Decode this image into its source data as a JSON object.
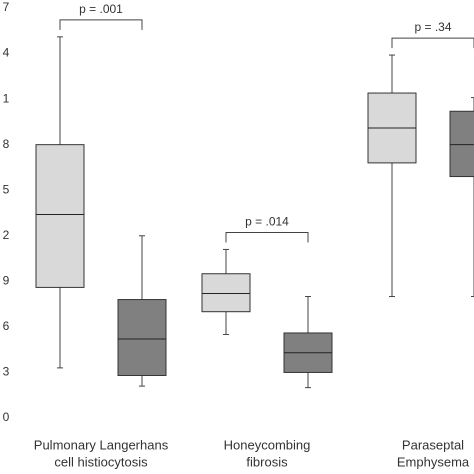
{
  "chart_data": {
    "type": "box",
    "categories": [
      [
        "Pulmonary Langerhans",
        "cell histiocytosis"
      ],
      [
        "Honeycombing",
        "fibrosis"
      ],
      [
        "Paraseptal",
        "Emphysema"
      ]
    ],
    "series": [
      {
        "color": "#d9d9d9",
        "boxes": [
          {
            "min": 3.3,
            "q1": 8.6,
            "median": 13.4,
            "q3": 18.0,
            "max": 25.1
          },
          {
            "min": 5.5,
            "q1": 7.0,
            "median": 8.2,
            "q3": 9.5,
            "max": 11.1
          },
          {
            "min": 8.0,
            "q1": 16.8,
            "median": 19.1,
            "q3": 21.4,
            "max": 23.9
          }
        ]
      },
      {
        "color": "#808080",
        "boxes": [
          {
            "min": 2.1,
            "q1": 2.8,
            "median": 5.2,
            "q3": 7.8,
            "max": 12.0
          },
          {
            "min": 2.0,
            "q1": 3.0,
            "median": 4.3,
            "q3": 5.6,
            "max": 8.0
          },
          {
            "min": 8.0,
            "q1": 15.9,
            "median": 18.0,
            "q3": 20.2,
            "max": 21.1
          }
        ]
      }
    ],
    "annotations": [
      "p = .001",
      "p = .014",
      "p = .34"
    ],
    "ylim": [
      0,
      27
    ],
    "yticks": [
      0,
      3,
      6,
      9,
      {
        "value": 12,
        "label": "2"
      },
      {
        "value": 15,
        "label": "5"
      },
      {
        "value": 18,
        "label": "8"
      },
      {
        "value": 21,
        "label": "1"
      },
      {
        "value": 24,
        "label": "4"
      },
      {
        "value": 27,
        "label": "7"
      }
    ]
  }
}
